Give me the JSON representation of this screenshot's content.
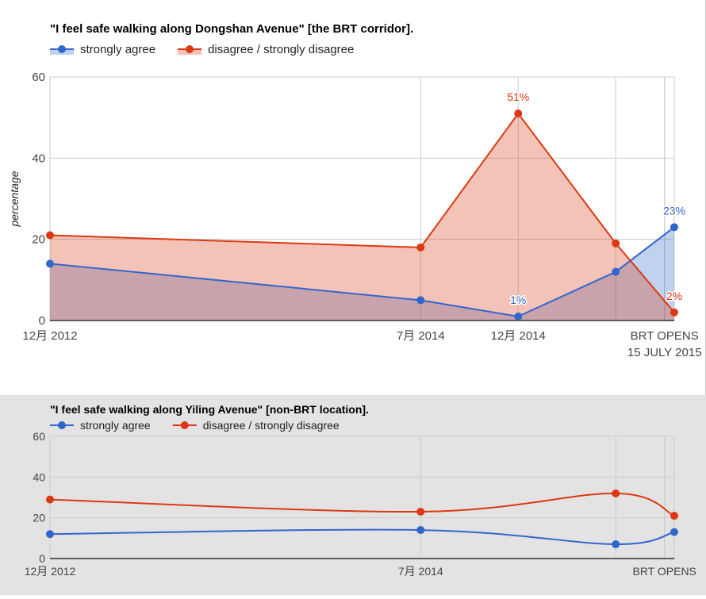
{
  "chart_data": [
    {
      "type": "area",
      "title": "\"I feel safe walking along Dongshan Avenue\" [the BRT corridor].",
      "xlabel": "",
      "ylabel": "percentage",
      "ylim": [
        0,
        60
      ],
      "yticks": [
        "0",
        "20",
        "40",
        "60"
      ],
      "xticks": [
        {
          "label": "12月 2012",
          "t": 0
        },
        {
          "label": "7月 2014",
          "t": 19
        },
        {
          "label": "12月 2014",
          "t": 24
        },
        {
          "label": "BRT OPENS",
          "t": 31.5,
          "sub": "15 JULY 2015"
        }
      ],
      "extra_gridlines": [
        29,
        31.5
      ],
      "legend": "top-left",
      "series": [
        {
          "name": "strongly agree",
          "color": "#3366cc",
          "x": [
            0,
            19,
            24,
            29,
            32
          ],
          "values": [
            14,
            5,
            1,
            12,
            23
          ],
          "labels": [
            "",
            "",
            "1%",
            "",
            "23%"
          ]
        },
        {
          "name": "disagree / strongly disagree",
          "color": "#dc3912",
          "x": [
            0,
            19,
            24,
            29,
            32
          ],
          "values": [
            21,
            18,
            51,
            19,
            2
          ],
          "labels": [
            "",
            "",
            "51%",
            "",
            "2%"
          ]
        }
      ]
    },
    {
      "type": "line",
      "title": "\"I feel safe walking along Yiling Avenue\" [non-BRT location].",
      "xlabel": "",
      "ylabel": "",
      "ylim": [
        0,
        60
      ],
      "yticks": [
        "0",
        "20",
        "40",
        "60"
      ],
      "xticks": [
        {
          "label": "12月 2012",
          "t": 0
        },
        {
          "label": "7月 2014",
          "t": 19
        },
        {
          "label": "BRT OPENS",
          "t": 31.5
        }
      ],
      "extra_gridlines": [
        29,
        31.5
      ],
      "legend": "top-left",
      "series": [
        {
          "name": "strongly agree",
          "color": "#3366cc",
          "x": [
            0,
            19,
            29,
            32
          ],
          "values": [
            12,
            14,
            7,
            13
          ]
        },
        {
          "name": "disagree / strongly disagree",
          "color": "#dc3912",
          "x": [
            0,
            19,
            29,
            32
          ],
          "values": [
            29,
            23,
            32,
            21
          ]
        }
      ]
    }
  ]
}
